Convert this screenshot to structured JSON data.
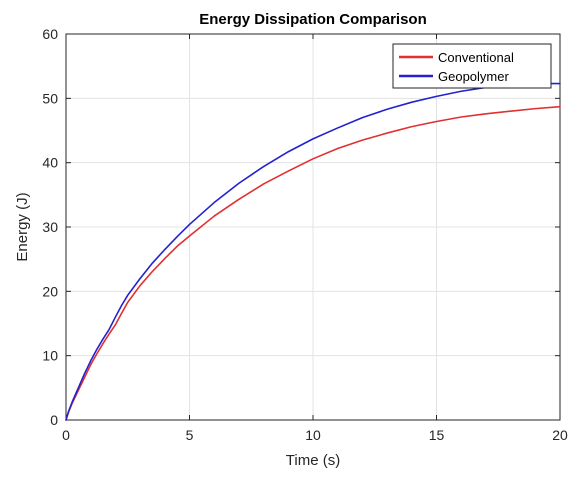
{
  "chart_data": {
    "type": "line",
    "title": "Energy Dissipation Comparison",
    "xlabel": "Time (s)",
    "ylabel": "Energy (J)",
    "xlim": [
      0,
      20
    ],
    "ylim": [
      0,
      60
    ],
    "xticks": [
      0,
      5,
      10,
      15,
      20
    ],
    "yticks": [
      0,
      10,
      20,
      30,
      40,
      50,
      60
    ],
    "grid": true,
    "legend_position": "top-right",
    "series": [
      {
        "name": "Conventional",
        "color": "#e03030",
        "x": [
          0,
          0.1,
          0.25,
          0.5,
          0.75,
          1,
          1.25,
          1.5,
          1.75,
          2,
          2.25,
          2.5,
          3,
          3.5,
          4,
          4.5,
          5,
          6,
          7,
          8,
          9,
          10,
          11,
          12,
          13,
          14,
          15,
          16,
          17,
          18,
          19,
          20
        ],
        "y": [
          0,
          1.2,
          2.6,
          4.6,
          6.6,
          8.6,
          10.3,
          11.9,
          13.4,
          14.8,
          16.6,
          18.3,
          20.9,
          23.1,
          25.1,
          27.0,
          28.6,
          31.7,
          34.3,
          36.7,
          38.7,
          40.6,
          42.2,
          43.5,
          44.6,
          45.6,
          46.4,
          47.1,
          47.6,
          48.0,
          48.4,
          48.7
        ]
      },
      {
        "name": "Geopolymer",
        "color": "#2222d0",
        "x": [
          0,
          0.1,
          0.25,
          0.5,
          0.75,
          1,
          1.25,
          1.5,
          1.75,
          2,
          2.25,
          2.5,
          3,
          3.5,
          4,
          4.5,
          5,
          6,
          7,
          8,
          9,
          10,
          11,
          12,
          13,
          14,
          15,
          16,
          17,
          18,
          19,
          20
        ],
        "y": [
          0,
          1.3,
          2.8,
          5.0,
          7.2,
          9.2,
          11.0,
          12.6,
          14.1,
          16.0,
          17.8,
          19.4,
          22.0,
          24.4,
          26.5,
          28.5,
          30.4,
          33.8,
          36.8,
          39.4,
          41.7,
          43.7,
          45.4,
          47.0,
          48.3,
          49.4,
          50.3,
          51.1,
          51.7,
          52.1,
          52.3,
          52.3
        ]
      }
    ]
  }
}
